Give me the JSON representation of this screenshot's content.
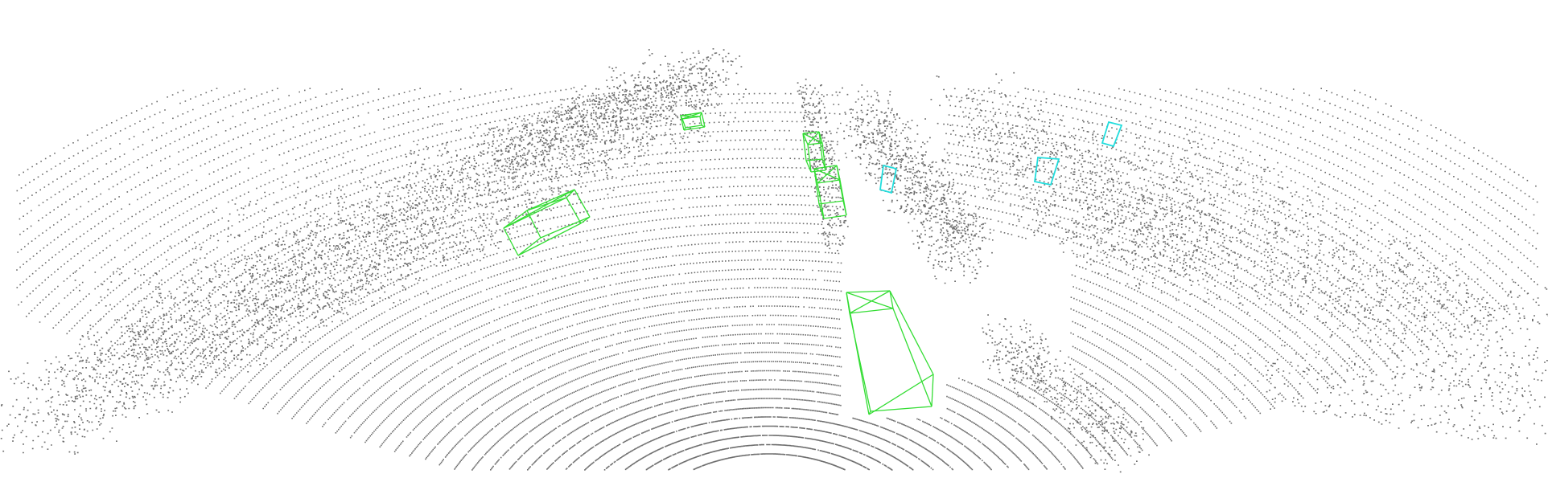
{
  "view": {
    "background_color": "#ffffff"
  },
  "point_cloud": {
    "point_color": "#6e6e6e",
    "description_hidden": true
  },
  "detections": {
    "car_box_color": "#33dd33",
    "pedestrian_box_color": "#22dddd",
    "car_count": 5,
    "pedestrian_count": 3
  }
}
